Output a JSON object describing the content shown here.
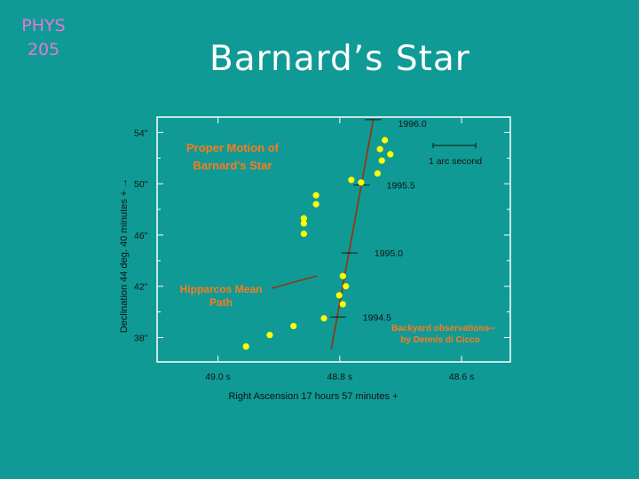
{
  "slide": {
    "course_line1": "PHYS",
    "course_line2": "205",
    "title": "Barnard’s Star"
  },
  "colors": {
    "background": "#109a96",
    "plot_frame": "#ffffff",
    "points": "#ffff00",
    "path_line": "#8b3a18",
    "orange_text": "#ff7a1a"
  },
  "chart_data": {
    "type": "scatter",
    "title": "Proper Motion of Barnard's Star",
    "xlabel": "Right Ascension 17 hours 57 minutes +",
    "ylabel": "Declination 44 deg. 40 minutes +",
    "x_tick_labels": [
      "49.0 s",
      "48.8 s",
      "48.6 s"
    ],
    "x_ticks": [
      49.0,
      48.8,
      48.6
    ],
    "xlim": [
      49.1,
      48.52
    ],
    "y_tick_labels": [
      "54\"",
      "50\"",
      "46\"",
      "42\"",
      "38\""
    ],
    "y_ticks": [
      54,
      50,
      46,
      42,
      38
    ],
    "ylim": [
      36.1,
      55.2
    ],
    "grid": false,
    "scale_bar_label": "1 arc second",
    "series": [
      {
        "name": "Backyard observations by Dennis di Cicco",
        "points": [
          {
            "x": 48.726,
            "y": 53.4
          },
          {
            "x": 48.734,
            "y": 52.7
          },
          {
            "x": 48.717,
            "y": 52.3
          },
          {
            "x": 48.731,
            "y": 51.8
          },
          {
            "x": 48.738,
            "y": 50.8
          },
          {
            "x": 48.765,
            "y": 50.1
          },
          {
            "x": 48.781,
            "y": 50.3
          },
          {
            "x": 48.839,
            "y": 49.1
          },
          {
            "x": 48.839,
            "y": 48.4
          },
          {
            "x": 48.859,
            "y": 47.3
          },
          {
            "x": 48.859,
            "y": 46.9
          },
          {
            "x": 48.859,
            "y": 46.1
          },
          {
            "x": 48.795,
            "y": 42.8
          },
          {
            "x": 48.79,
            "y": 42.0
          },
          {
            "x": 48.801,
            "y": 41.3
          },
          {
            "x": 48.795,
            "y": 40.6
          },
          {
            "x": 48.826,
            "y": 39.5
          },
          {
            "x": 48.876,
            "y": 38.9
          },
          {
            "x": 48.915,
            "y": 38.2
          },
          {
            "x": 48.954,
            "y": 37.3
          }
        ]
      }
    ],
    "mean_path": {
      "label": "Hipparcos Mean Path",
      "start": {
        "x": 48.814,
        "y": 37.1
      },
      "end": {
        "x": 48.745,
        "y": 55.0
      }
    },
    "epochs": [
      {
        "label": "1994.5",
        "x": 48.803,
        "y": 39.6
      },
      {
        "label": "1995.0",
        "x": 48.784,
        "y": 44.6
      },
      {
        "label": "1995.5",
        "x": 48.764,
        "y": 49.9
      },
      {
        "label": "1996.0",
        "x": 48.745,
        "y": 55.0
      }
    ],
    "annotations": [
      {
        "text": "Backyard observations"
      },
      {
        "text": "by Dennis di Cicco"
      }
    ]
  }
}
